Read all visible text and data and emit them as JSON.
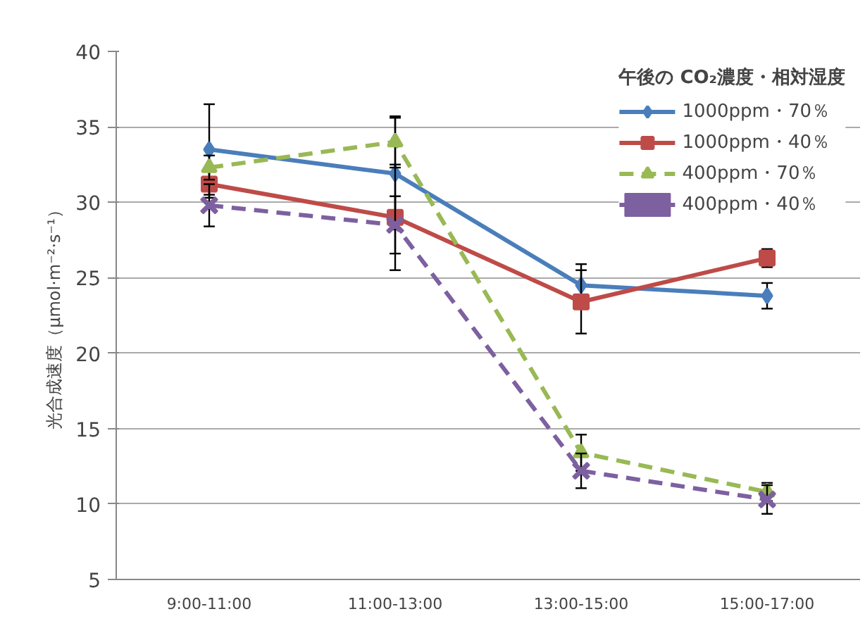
{
  "chart_data": {
    "type": "line",
    "ylabel": "光合成速度（μmol·m⁻²·s⁻¹）",
    "legend_title": "午後の CO₂濃度・相対湿度",
    "categories": [
      "9:00-11:00",
      "11:00-13:00",
      "13:00-15:00",
      "15:00-17:00"
    ],
    "ylim": [
      5,
      40
    ],
    "yticks": [
      5,
      10,
      15,
      20,
      25,
      30,
      35,
      40
    ],
    "grid": "y",
    "legend": "top right",
    "series": [
      {
        "name": "1000ppm・70％",
        "color": "#4a7ebb",
        "marker": "diamond",
        "line_style": "solid",
        "values": [
          33.5,
          31.9,
          24.5,
          23.8
        ],
        "errors": [
          3,
          3.7,
          1.4,
          0.85
        ]
      },
      {
        "name": "1000ppm・40％",
        "color": "#be4b48",
        "marker": "square",
        "line_style": "solid",
        "values": [
          31.2,
          29,
          23.4,
          26.3
        ],
        "errors": [
          0.9,
          3.5,
          2.1,
          0.6
        ]
      },
      {
        "name": "400ppm・70％",
        "color": "#98b954",
        "marker": "triangle",
        "line_style": "dashed",
        "values": [
          32.3,
          34,
          13.4,
          10.8
        ],
        "errors": [
          0.8,
          1.7,
          1.2,
          0.6
        ]
      },
      {
        "name": "400ppm・40％",
        "color": "#7d60a0",
        "marker": "cross",
        "line_style": "dashed",
        "values": [
          29.8,
          28.5,
          12.2,
          10.3
        ],
        "errors": [
          1.4,
          1.9,
          1.15,
          0.95
        ]
      }
    ]
  }
}
